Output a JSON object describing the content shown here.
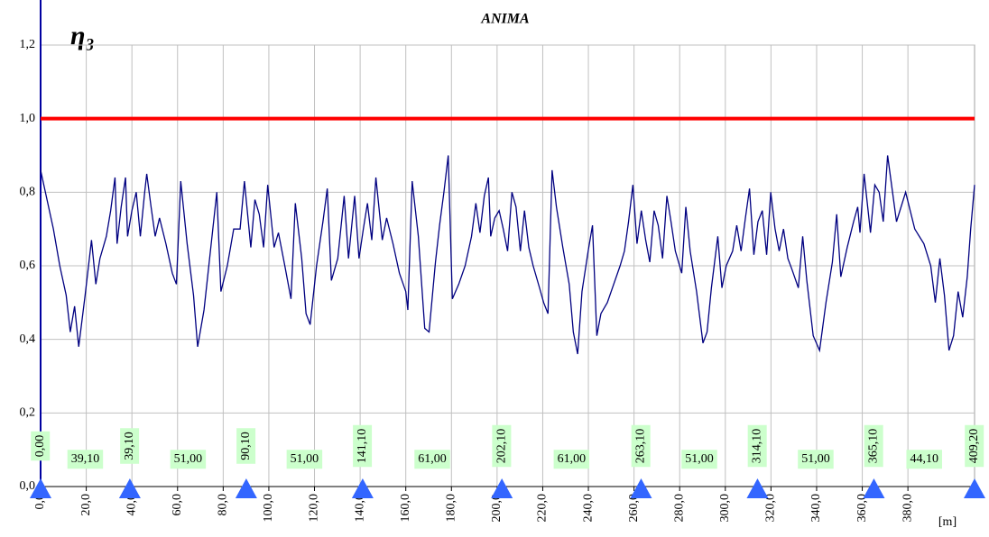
{
  "chart_data": {
    "type": "line",
    "title": "ANIMA",
    "y_label": "η₃",
    "x_label": "[m]",
    "xlim": [
      0,
      409.2
    ],
    "ylim": [
      0,
      1.2
    ],
    "xticks": [
      {
        "value": 0,
        "label": "0,0"
      },
      {
        "value": 20,
        "label": "20,0"
      },
      {
        "value": 40,
        "label": "40,0"
      },
      {
        "value": 60,
        "label": "60,0"
      },
      {
        "value": 80,
        "label": "80,0"
      },
      {
        "value": 100,
        "label": "100,0"
      },
      {
        "value": 120,
        "label": "120,0"
      },
      {
        "value": 140,
        "label": "140,0"
      },
      {
        "value": 160,
        "label": "160,0"
      },
      {
        "value": 180,
        "label": "180,0"
      },
      {
        "value": 200,
        "label": "200,0"
      },
      {
        "value": 220,
        "label": "220,0"
      },
      {
        "value": 240,
        "label": "240,0"
      },
      {
        "value": 260,
        "label": "260,0"
      },
      {
        "value": 280,
        "label": "280,0"
      },
      {
        "value": 300,
        "label": "300,0"
      },
      {
        "value": 320,
        "label": "320,0"
      },
      {
        "value": 340,
        "label": "340,0"
      },
      {
        "value": 360,
        "label": "360,0"
      },
      {
        "value": 380,
        "label": "380,0"
      }
    ],
    "yticks": [
      {
        "value": 0,
        "label": "0,0"
      },
      {
        "value": 0.2,
        "label": "0,2"
      },
      {
        "value": 0.4,
        "label": "0,4"
      },
      {
        "value": 0.6,
        "label": "0,6"
      },
      {
        "value": 0.8,
        "label": "0,8"
      },
      {
        "value": 1.0,
        "label": "1,0"
      },
      {
        "value": 1.2,
        "label": "1,2"
      }
    ],
    "grid": true,
    "limit": {
      "value": 1.0,
      "color": "#ff0000"
    },
    "x": [
      0,
      2.8,
      5.6,
      8.4,
      11.2,
      13,
      14.9,
      16.7,
      19.5,
      22.3,
      24.2,
      26,
      28.8,
      30.7,
      32.6,
      33.5,
      35.3,
      37.2,
      38.1,
      40,
      41.9,
      43.7,
      45.6,
      46.5,
      48.4,
      50.2,
      52.1,
      54.9,
      57.7,
      59.5,
      61.4,
      64.2,
      67,
      68.8,
      71.6,
      74.4,
      77.2,
      79,
      81.8,
      84.6,
      87.4,
      89.3,
      92.1,
      93.9,
      95.8,
      97.7,
      99.5,
      102.3,
      104.2,
      107,
      109.7,
      111.6,
      114.4,
      116.3,
      118.1,
      120.9,
      123.7,
      125.6,
      127.4,
      130.2,
      133,
      134.9,
      137.6,
      139.5,
      141.4,
      143.2,
      145.1,
      146.9,
      149.7,
      151.6,
      154.4,
      157.2,
      160,
      160.9,
      162.8,
      165.5,
      168.3,
      170.2,
      173,
      174.8,
      176.7,
      178.6,
      180.4,
      183.2,
      186,
      188.8,
      190.7,
      192.5,
      194.4,
      196.2,
      197.2,
      199,
      200.9,
      202.7,
      204.6,
      206.5,
      208.3,
      210.2,
      212,
      213.9,
      215.8,
      218.6,
      220.4,
      222.3,
      224.1,
      226,
      228.8,
      231.6,
      233.4,
      235.3,
      237.2,
      239.9,
      241.8,
      243.7,
      245.5,
      248.3,
      251.1,
      253.9,
      255.8,
      257.6,
      259.5,
      261.3,
      263.2,
      265.1,
      266.9,
      268.8,
      270.6,
      272.5,
      274.4,
      276.2,
      278.1,
      280.9,
      282.7,
      284.6,
      287.4,
      290.2,
      292,
      293.9,
      296.7,
      298.5,
      300.4,
      303.2,
      305,
      306.9,
      308.8,
      310.6,
      312.5,
      314.3,
      316.2,
      318.1,
      319.9,
      321.8,
      323.6,
      325.5,
      327.4,
      329.2,
      332,
      333.9,
      335.7,
      338.5,
      341.3,
      344.1,
      346.9,
      348.8,
      350.6,
      353.4,
      356.2,
      358,
      359,
      360.8,
      363.6,
      365.5,
      367.4,
      369.2,
      371.1,
      375,
      379,
      383,
      387,
      390,
      392,
      394,
      396,
      398,
      400,
      402,
      404,
      406,
      407.5,
      409.2
    ],
    "series": [
      {
        "color": "#000080",
        "values": [
          0.86,
          0.78,
          0.7,
          0.6,
          0.52,
          0.42,
          0.49,
          0.38,
          0.52,
          0.67,
          0.55,
          0.62,
          0.68,
          0.75,
          0.84,
          0.66,
          0.76,
          0.84,
          0.68,
          0.75,
          0.8,
          0.68,
          0.8,
          0.85,
          0.76,
          0.68,
          0.73,
          0.66,
          0.58,
          0.55,
          0.83,
          0.66,
          0.52,
          0.38,
          0.48,
          0.64,
          0.8,
          0.53,
          0.6,
          0.7,
          0.7,
          0.83,
          0.65,
          0.78,
          0.74,
          0.65,
          0.82,
          0.65,
          0.69,
          0.6,
          0.51,
          0.77,
          0.62,
          0.47,
          0.44,
          0.6,
          0.72,
          0.81,
          0.56,
          0.62,
          0.79,
          0.62,
          0.79,
          0.62,
          0.7,
          0.77,
          0.67,
          0.84,
          0.67,
          0.73,
          0.66,
          0.58,
          0.53,
          0.48,
          0.83,
          0.68,
          0.43,
          0.42,
          0.61,
          0.71,
          0.8,
          0.9,
          0.51,
          0.55,
          0.6,
          0.68,
          0.77,
          0.69,
          0.79,
          0.84,
          0.68,
          0.73,
          0.75,
          0.7,
          0.64,
          0.8,
          0.76,
          0.64,
          0.75,
          0.65,
          0.6,
          0.54,
          0.5,
          0.47,
          0.86,
          0.76,
          0.65,
          0.55,
          0.42,
          0.36,
          0.53,
          0.64,
          0.71,
          0.41,
          0.47,
          0.5,
          0.55,
          0.6,
          0.64,
          0.72,
          0.82,
          0.66,
          0.75,
          0.67,
          0.61,
          0.75,
          0.71,
          0.62,
          0.79,
          0.72,
          0.64,
          0.58,
          0.76,
          0.64,
          0.53,
          0.39,
          0.42,
          0.54,
          0.68,
          0.54,
          0.6,
          0.64,
          0.71,
          0.64,
          0.73,
          0.81,
          0.63,
          0.72,
          0.75,
          0.63,
          0.8,
          0.7,
          0.64,
          0.7,
          0.62,
          0.59,
          0.54,
          0.68,
          0.56,
          0.41,
          0.37,
          0.5,
          0.61,
          0.74,
          0.57,
          0.65,
          0.72,
          0.76,
          0.69,
          0.85,
          0.69,
          0.82,
          0.8,
          0.72,
          0.9,
          0.72,
          0.8,
          0.7,
          0.66,
          0.6,
          0.5,
          0.62,
          0.52,
          0.37,
          0.41,
          0.53,
          0.46,
          0.57,
          0.7,
          0.82
        ]
      }
    ],
    "supports": {
      "values": [
        0,
        39.1,
        90.1,
        141.1,
        202.1,
        263.1,
        314.1,
        365.1,
        409.2
      ],
      "value_labels": [
        "0,00",
        "39,10",
        "90,10",
        "141,10",
        "202,10",
        "263,10",
        "314,10",
        "365,10",
        "409,20"
      ],
      "color": "#3366ff"
    },
    "spans": {
      "values": [
        39.1,
        51,
        51,
        61,
        61,
        51,
        51,
        44.1
      ],
      "value_labels": [
        "39,10",
        "51,00",
        "51,00",
        "61,00",
        "61,00",
        "51,00",
        "51,00",
        "44,10"
      ]
    }
  }
}
